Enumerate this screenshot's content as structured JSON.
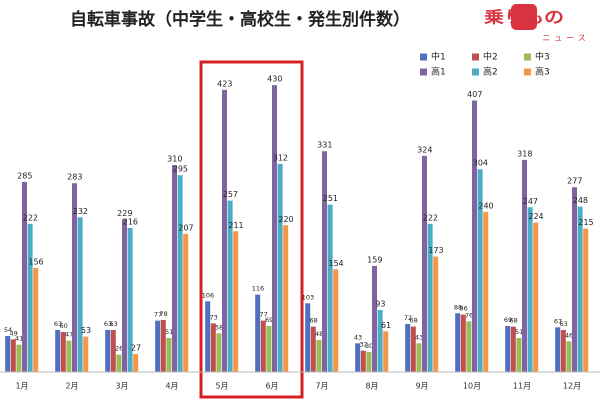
{
  "chart_data": {
    "type": "bar",
    "title": "自転車事故（中学生・高校生・発生別件数）",
    "categories": [
      "1月",
      "2月",
      "3月",
      "4月",
      "5月",
      "6月",
      "7月",
      "8月",
      "9月",
      "10月",
      "11月",
      "12月"
    ],
    "series": [
      {
        "name": "中1",
        "color": "#4f6fbf",
        "values": [
          54,
          63,
          63,
          77,
          106,
          116,
          103,
          43,
          72,
          88,
          69,
          67
        ]
      },
      {
        "name": "中2",
        "color": "#c0504d",
        "values": [
          49,
          60,
          63,
          78,
          73,
          77,
          68,
          32,
          68,
          86,
          68,
          63
        ]
      },
      {
        "name": "中3",
        "color": "#9bbb59",
        "values": [
          41,
          47,
          26,
          51,
          58,
          69,
          48,
          30,
          43,
          76,
          51,
          46
        ]
      },
      {
        "name": "高1",
        "color": "#8064a2",
        "values": [
          285,
          283,
          229,
          310,
          423,
          430,
          331,
          159,
          324,
          407,
          318,
          277
        ]
      },
      {
        "name": "高2",
        "color": "#4bacc6",
        "values": [
          222,
          232,
          216,
          295,
          257,
          312,
          251,
          93,
          222,
          304,
          247,
          248
        ]
      },
      {
        "name": "高3",
        "color": "#f79646",
        "values": [
          156,
          53,
          27,
          207,
          211,
          220,
          154,
          61,
          173,
          240,
          224,
          215
        ]
      }
    ]
  },
  "logo": {
    "main": "乗りもの",
    "sub": "ニュース"
  }
}
